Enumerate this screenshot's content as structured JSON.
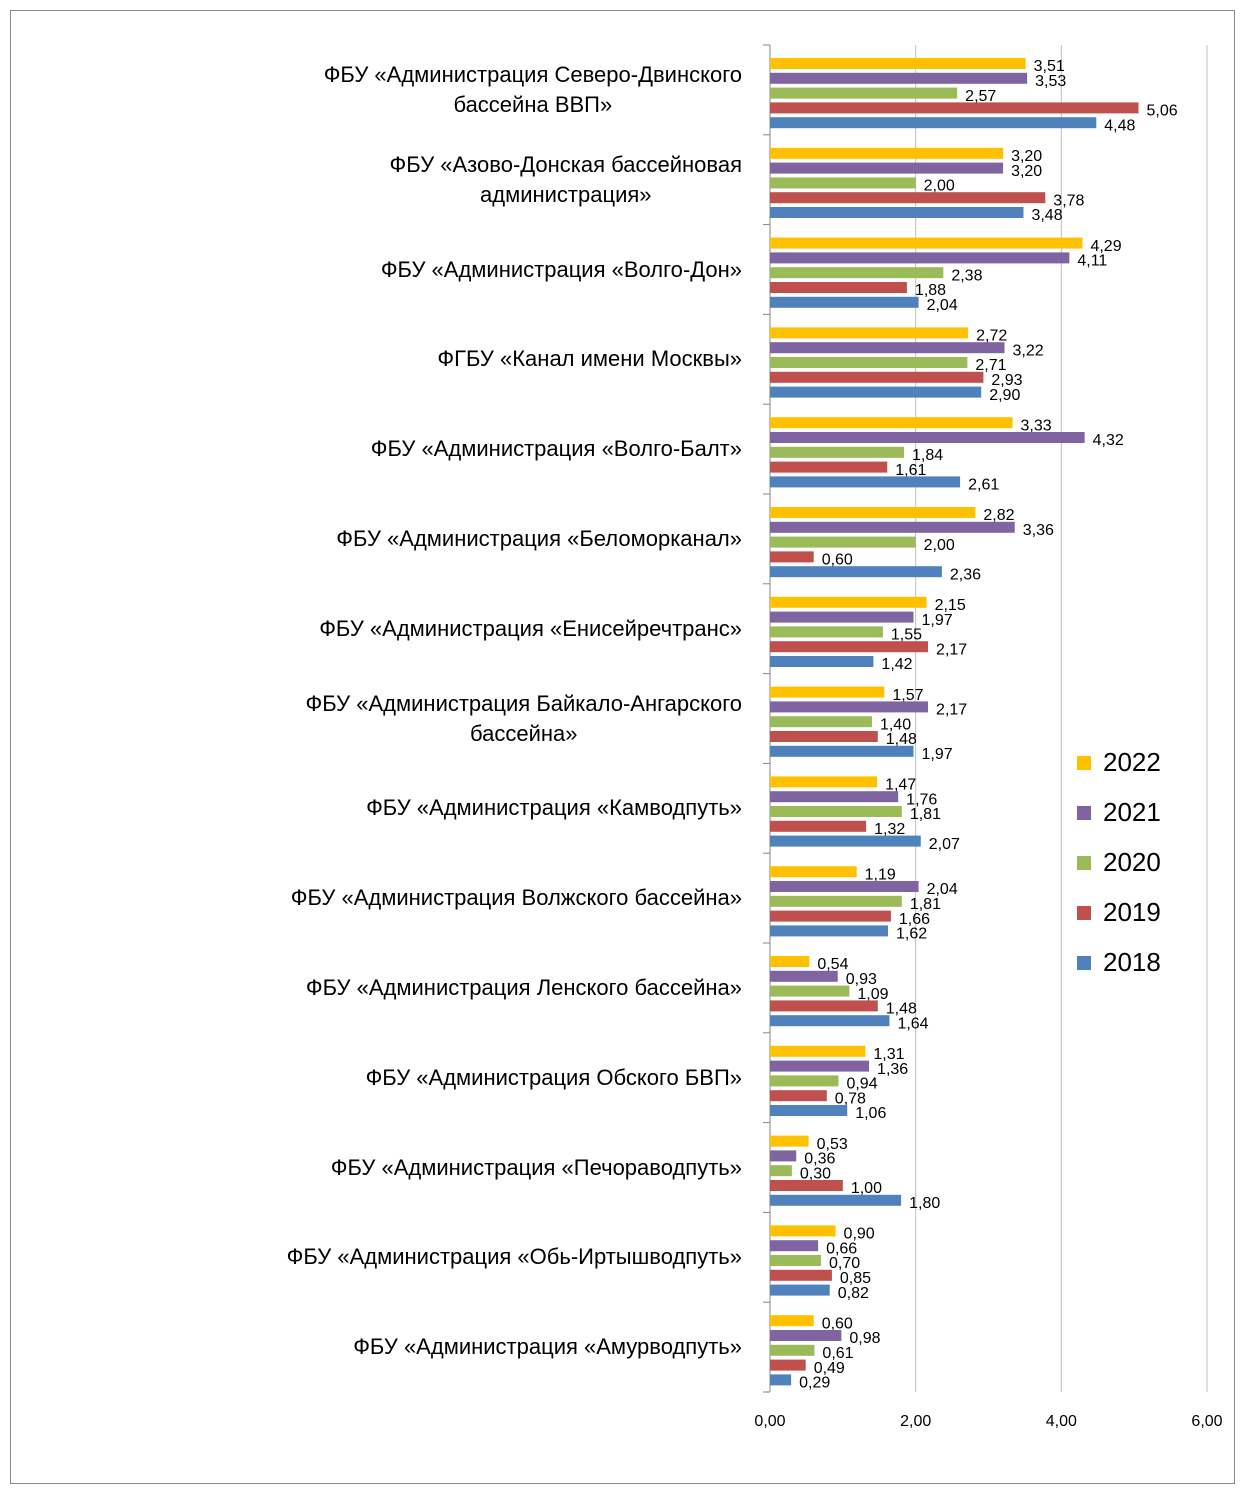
{
  "chart_data": {
    "type": "bar",
    "orientation": "horizontal",
    "categories": [
      "ФБУ «Администрация Северо-Двинского\nбассейна ВВП»",
      "ФБУ «Азово-Донская бассейновая\nадминистрация»",
      "ФБУ «Администрация «Волго-Дон»",
      "ФГБУ «Канал имени Москвы»",
      "ФБУ «Администрация «Волго-Балт»",
      "ФБУ «Администрация «Беломорканал»",
      "ФБУ «Администрация «Енисейречтранс»",
      "ФБУ «Администрация Байкало-Ангарского\nбассейна»",
      "ФБУ «Администрация «Камводпуть»",
      "ФБУ «Администрация Волжского бассейна»",
      "ФБУ «Администрация Ленского бассейна»",
      "ФБУ «Администрация Обского БВП»",
      "ФБУ «Администрация «Печораводпуть»",
      "ФБУ «Администрация «Обь-Иртышводпуть»",
      "ФБУ «Администрация «Амурводпуть»"
    ],
    "series": [
      {
        "name": "2022",
        "color": "#ffc000",
        "values": [
          3.51,
          3.2,
          4.29,
          2.72,
          3.33,
          2.82,
          2.15,
          1.57,
          1.47,
          1.19,
          0.54,
          1.31,
          0.53,
          0.9,
          0.6
        ],
        "value_labels": [
          "3,51",
          "3,20",
          "4,29",
          "2,72",
          "3,33",
          "2,82",
          "2,15",
          "1,57",
          "1,47",
          "1,19",
          "0,54",
          "1,31",
          "0,53",
          "0,90",
          "0,60"
        ]
      },
      {
        "name": "2021",
        "color": "#8064a2",
        "values": [
          3.53,
          3.2,
          4.11,
          3.22,
          4.32,
          3.36,
          1.97,
          2.17,
          1.76,
          2.04,
          0.93,
          1.36,
          0.36,
          0.66,
          0.98
        ],
        "value_labels": [
          "3,53",
          "3,20",
          "4,11",
          "3,22",
          "4,32",
          "3,36",
          "1,97",
          "2,17",
          "1,76",
          "2,04",
          "0,93",
          "1,36",
          "0,36",
          "0,66",
          "0,98"
        ]
      },
      {
        "name": "2020",
        "color": "#9bbb59",
        "values": [
          2.57,
          2.0,
          2.38,
          2.71,
          1.84,
          2.0,
          1.55,
          1.4,
          1.81,
          1.81,
          1.09,
          0.94,
          0.3,
          0.7,
          0.61
        ],
        "value_labels": [
          "2,57",
          "2,00",
          "2,38",
          "2,71",
          "1,84",
          "2,00",
          "1,55",
          "1,40",
          "1,81",
          "1,81",
          "1,09",
          "0,94",
          "0,30",
          "0,70",
          "0,61"
        ]
      },
      {
        "name": "2019",
        "color": "#c0504d",
        "values": [
          5.06,
          3.78,
          1.88,
          2.93,
          1.61,
          0.6,
          2.17,
          1.48,
          1.32,
          1.66,
          1.48,
          0.78,
          1.0,
          0.85,
          0.49
        ],
        "value_labels": [
          "5,06",
          "3,78",
          "1,88",
          "2,93",
          "1,61",
          "0,60",
          "2,17",
          "1,48",
          "1,32",
          "1,66",
          "1,48",
          "0,78",
          "1,00",
          "0,85",
          "0,49"
        ]
      },
      {
        "name": "2018",
        "color": "#4f81bd",
        "values": [
          4.48,
          3.48,
          2.04,
          2.9,
          2.61,
          2.36,
          1.42,
          1.97,
          2.07,
          1.62,
          1.64,
          1.06,
          1.8,
          0.82,
          0.29
        ],
        "value_labels": [
          "4,48",
          "3,48",
          "2,04",
          "2,90",
          "2,61",
          "2,36",
          "1,42",
          "1,97",
          "2,07",
          "1,62",
          "1,64",
          "1,06",
          "1,80",
          "0,82",
          "0,29"
        ]
      }
    ],
    "xlim": [
      0,
      6
    ],
    "xticks": [
      {
        "value": 0,
        "label": "0,00"
      },
      {
        "value": 2,
        "label": "2,00"
      },
      {
        "value": 4,
        "label": "4,00"
      },
      {
        "value": 6,
        "label": "6,00"
      }
    ],
    "grid": true,
    "legend": "right"
  }
}
